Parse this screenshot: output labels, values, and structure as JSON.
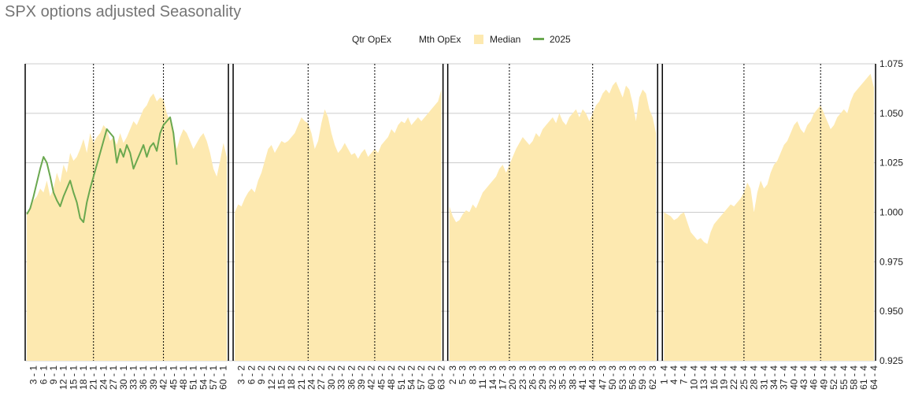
{
  "chart_data": {
    "type": "area",
    "title": "SPX options adjusted Seasonality",
    "legend": [
      {
        "label": "Qtr OpEx",
        "marker": "none"
      },
      {
        "label": "Mth OpEx",
        "marker": "none"
      },
      {
        "label": "Median",
        "marker": "area",
        "color": "#fde9b0"
      },
      {
        "label": "2025",
        "marker": "line",
        "color": "#6aa84f"
      }
    ],
    "ylim": [
      0.925,
      1.075
    ],
    "y_ticks": [
      "1.075",
      "1.050",
      "1.025",
      "1.000",
      "0.975",
      "0.950",
      "0.925"
    ],
    "y_tick_values": [
      1.075,
      1.05,
      1.025,
      1.0,
      0.975,
      0.95,
      0.925
    ],
    "quarters": [
      {
        "quarter": 1,
        "days": 61,
        "tick_labels": [
          "3 - 1",
          "6 - 1",
          "9 - 1",
          "12 - 1",
          "15 - 1",
          "18 - 1",
          "21 - 1",
          "24 - 1",
          "27 - 1",
          "30 - 1",
          "33 - 1",
          "36 - 1",
          "39 - 1",
          "42 - 1",
          "45 - 1",
          "48 - 1",
          "51 - 1",
          "54 - 1",
          "57 - 1",
          "60 - 1"
        ],
        "mth_opex_days": [
          21,
          42
        ]
      },
      {
        "quarter": 2,
        "days": 63,
        "tick_labels": [
          "3 - 2",
          "6 - 2",
          "9 - 2",
          "12 - 2",
          "15 - 2",
          "18 - 2",
          "21 - 2",
          "24 - 2",
          "27 - 2",
          "30 - 2",
          "33 - 2",
          "36 - 2",
          "39 - 2",
          "42 - 2",
          "45 - 2",
          "48 - 2",
          "51 - 2",
          "54 - 2",
          "57 - 2",
          "60 - 2",
          "63 - 2"
        ],
        "mth_opex_days": [
          23,
          43
        ]
      },
      {
        "quarter": 3,
        "days": 63,
        "tick_labels": [
          "2 - 3",
          "5 - 3",
          "8 - 3",
          "11 - 3",
          "14 - 3",
          "17 - 3",
          "20 - 3",
          "23 - 3",
          "26 - 3",
          "29 - 3",
          "32 - 3",
          "35 - 3",
          "38 - 3",
          "41 - 3",
          "44 - 3",
          "47 - 3",
          "50 - 3",
          "53 - 3",
          "56 - 3",
          "59 - 3",
          "62 - 3"
        ],
        "mth_opex_days": [
          19,
          44
        ]
      },
      {
        "quarter": 4,
        "days": 64,
        "tick_labels": [
          "1 - 4",
          "4 - 4",
          "7 - 4",
          "10 - 4",
          "13 - 4",
          "16 - 4",
          "19 - 4",
          "22 - 4",
          "25 - 4",
          "28 - 4",
          "31 - 4",
          "34 - 4",
          "37 - 4",
          "40 - 4",
          "43 - 4",
          "46 - 4",
          "49 - 4",
          "52 - 4",
          "55 - 4",
          "58 - 4",
          "61 - 4",
          "64 - 4"
        ],
        "mth_opex_days": [
          25,
          48
        ]
      }
    ],
    "series": [
      {
        "name": "Median",
        "values": [
          1.0,
          1.002,
          1.006,
          1.008,
          1.012,
          1.01,
          1.016,
          1.008,
          1.012,
          1.02,
          1.015,
          1.024,
          1.02,
          1.03,
          1.026,
          1.028,
          1.032,
          1.037,
          1.03,
          1.04,
          1.035,
          1.038,
          1.04,
          1.044,
          1.042,
          1.036,
          1.038,
          1.034,
          1.04,
          1.035,
          1.038,
          1.042,
          1.046,
          1.044,
          1.048,
          1.052,
          1.054,
          1.058,
          1.06,
          1.056,
          1.058,
          1.057,
          1.05,
          1.046,
          1.04,
          1.032,
          1.038,
          1.042,
          1.04,
          1.036,
          1.032,
          1.035,
          1.038,
          1.04,
          1.036,
          1.03,
          1.022,
          1.018,
          1.026,
          1.035,
          1.028,
          1.0,
          1.004,
          1.003,
          1.007,
          1.01,
          1.012,
          1.01,
          1.016,
          1.02,
          1.026,
          1.032,
          1.034,
          1.03,
          1.033,
          1.036,
          1.035,
          1.036,
          1.038,
          1.04,
          1.044,
          1.048,
          1.046,
          1.045,
          1.04,
          1.032,
          1.036,
          1.045,
          1.052,
          1.048,
          1.04,
          1.034,
          1.03,
          1.032,
          1.035,
          1.032,
          1.029,
          1.03,
          1.027,
          1.03,
          1.032,
          1.028,
          1.03,
          1.032,
          1.03,
          1.034,
          1.036,
          1.038,
          1.042,
          1.04,
          1.044,
          1.046,
          1.045,
          1.048,
          1.044,
          1.046,
          1.048,
          1.046,
          1.048,
          1.05,
          1.052,
          1.054,
          1.056,
          1.062,
          1.003,
          0.998,
          0.995,
          0.996,
          0.999,
          1.001,
          1.0,
          1.004,
          1.002,
          1.006,
          1.01,
          1.012,
          1.014,
          1.016,
          1.018,
          1.022,
          1.024,
          1.02,
          1.024,
          1.028,
          1.032,
          1.035,
          1.038,
          1.036,
          1.034,
          1.036,
          1.04,
          1.038,
          1.042,
          1.044,
          1.046,
          1.048,
          1.045,
          1.05,
          1.046,
          1.044,
          1.048,
          1.05,
          1.052,
          1.048,
          1.052,
          1.05,
          1.046,
          1.05,
          1.054,
          1.056,
          1.06,
          1.062,
          1.06,
          1.064,
          1.066,
          1.062,
          1.058,
          1.064,
          1.062,
          1.055,
          1.046,
          1.058,
          1.062,
          1.06,
          1.052,
          1.048,
          1.04,
          1.0,
          0.999,
          0.998,
          0.996,
          0.997,
          0.999,
          1.0,
          0.995,
          0.99,
          0.988,
          0.986,
          0.987,
          0.985,
          0.984,
          0.99,
          0.994,
          0.996,
          0.998,
          1.0,
          1.002,
          1.004,
          1.003,
          1.005,
          1.007,
          1.01,
          1.015,
          1.012,
          1.0,
          1.01,
          1.016,
          1.012,
          1.014,
          1.02,
          1.024,
          1.026,
          1.03,
          1.034,
          1.036,
          1.04,
          1.044,
          1.046,
          1.042,
          1.04,
          1.044,
          1.046,
          1.05,
          1.052,
          1.054,
          1.05,
          1.046,
          1.042,
          1.044,
          1.048,
          1.05,
          1.052,
          1.05,
          1.056,
          1.06,
          1.062,
          1.064,
          1.066,
          1.068,
          1.07,
          1.063
        ]
      },
      {
        "name": "2025",
        "values": [
          0.999,
          1.002,
          1.008,
          1.015,
          1.022,
          1.028,
          1.025,
          1.018,
          1.01,
          1.006,
          1.003,
          1.008,
          1.012,
          1.016,
          1.01,
          1.005,
          0.997,
          0.995,
          1.005,
          1.012,
          1.018,
          1.024,
          1.03,
          1.036,
          1.042,
          1.04,
          1.038,
          1.025,
          1.032,
          1.028,
          1.034,
          1.03,
          1.022,
          1.026,
          1.03,
          1.034,
          1.028,
          1.033,
          1.035,
          1.031,
          1.04,
          1.044,
          1.046,
          1.048,
          1.04,
          1.024
        ]
      }
    ]
  }
}
